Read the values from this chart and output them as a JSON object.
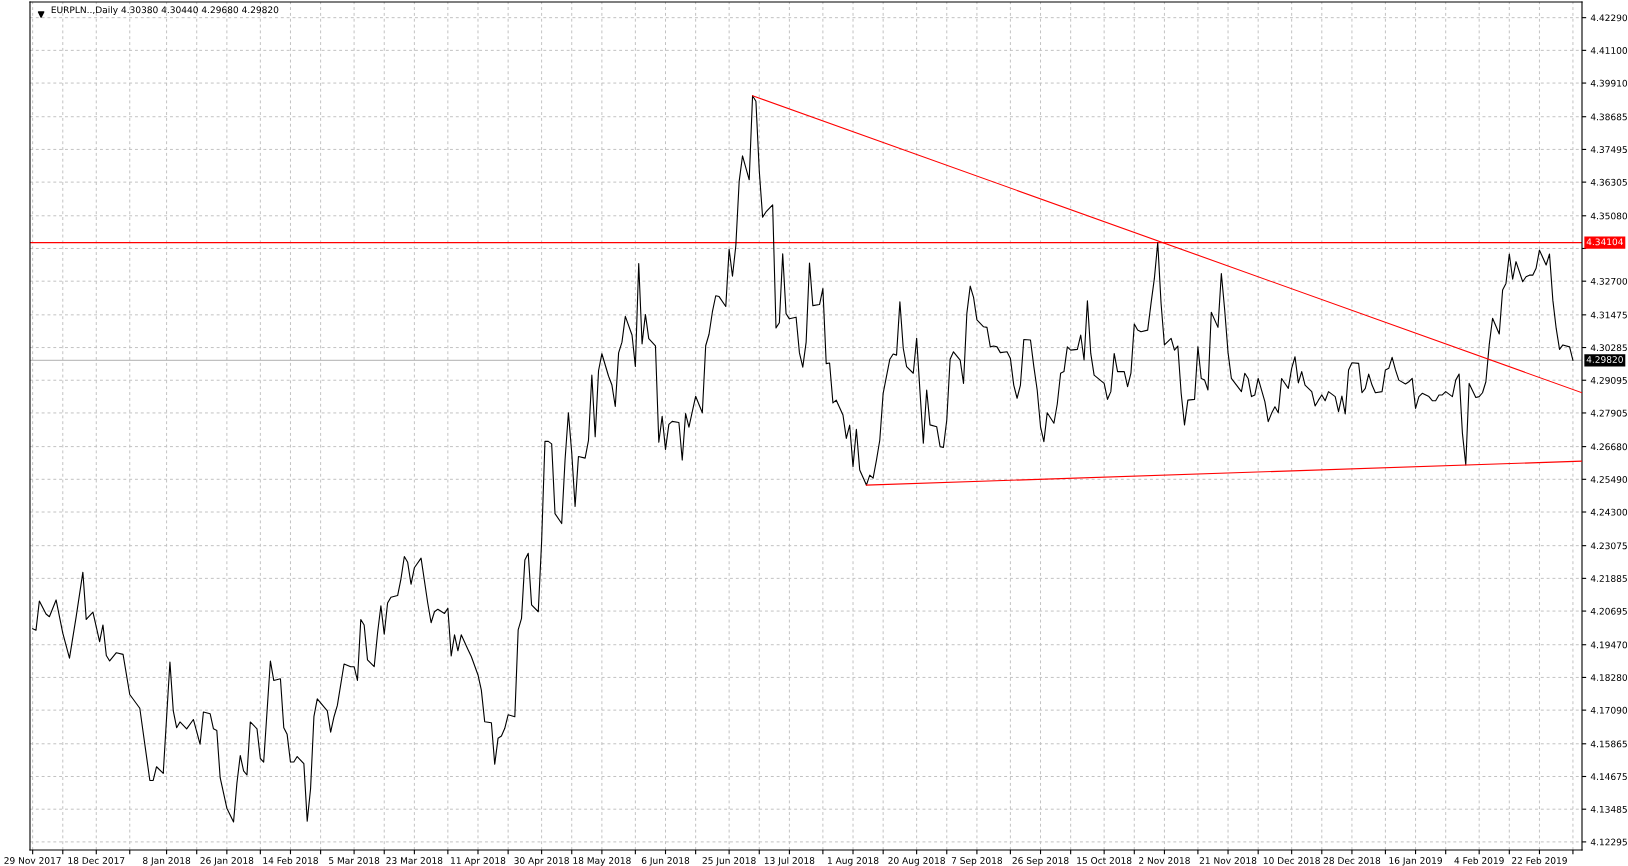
{
  "chart_data": {
    "type": "line",
    "title": "EURPLN..,Daily 4.30380 4.30440 4.29680 4.29820",
    "series": [
      {
        "color": "#000000",
        "x": [
          "2017-11-29",
          "2017-11-30",
          "2017-12-01",
          "2017-12-03",
          "2017-12-04",
          "2017-12-06",
          "2017-12-08",
          "2017-12-10",
          "2017-12-12",
          "2017-12-14",
          "2017-12-15",
          "2017-12-17",
          "2017-12-19",
          "2017-12-20",
          "2017-12-21",
          "2017-12-22",
          "2017-12-24",
          "2017-12-26",
          "2017-12-28",
          "2017-12-31",
          "2018-01-03",
          "2018-01-04",
          "2018-01-05",
          "2018-01-07",
          "2018-01-09",
          "2018-01-10",
          "2018-01-11",
          "2018-01-12",
          "2018-01-14",
          "2018-01-16",
          "2018-01-18",
          "2018-01-19",
          "2018-01-21",
          "2018-01-22",
          "2018-01-23",
          "2018-01-24",
          "2018-01-26",
          "2018-01-28",
          "2018-01-29",
          "2018-01-30",
          "2018-01-31",
          "2018-02-01",
          "2018-02-02",
          "2018-02-04",
          "2018-02-05",
          "2018-02-06",
          "2018-02-08",
          "2018-02-09",
          "2018-02-11",
          "2018-02-12",
          "2018-02-13",
          "2018-02-14",
          "2018-02-15",
          "2018-02-16",
          "2018-02-18",
          "2018-02-19",
          "2018-02-20",
          "2018-02-21",
          "2018-02-22",
          "2018-02-25",
          "2018-02-26",
          "2018-02-27",
          "2018-02-28",
          "2018-03-02",
          "2018-03-04",
          "2018-03-05",
          "2018-03-06",
          "2018-03-07",
          "2018-03-08",
          "2018-03-09",
          "2018-03-11",
          "2018-03-12",
          "2018-03-13",
          "2018-03-14",
          "2018-03-15",
          "2018-03-16",
          "2018-03-18",
          "2018-03-19",
          "2018-03-20",
          "2018-03-21",
          "2018-03-22",
          "2018-03-23",
          "2018-03-25",
          "2018-03-27",
          "2018-03-28",
          "2018-03-29",
          "2018-03-30",
          "2018-04-01",
          "2018-04-02",
          "2018-04-03",
          "2018-04-04",
          "2018-04-05",
          "2018-04-06",
          "2018-04-08",
          "2018-04-09",
          "2018-04-11",
          "2018-04-12",
          "2018-04-13",
          "2018-04-15",
          "2018-04-16",
          "2018-04-17",
          "2018-04-18",
          "2018-04-19",
          "2018-04-20",
          "2018-04-22",
          "2018-04-23",
          "2018-04-24",
          "2018-04-25",
          "2018-04-26",
          "2018-04-27",
          "2018-04-29",
          "2018-04-30",
          "2018-05-01",
          "2018-05-02",
          "2018-05-03",
          "2018-05-04",
          "2018-05-06",
          "2018-05-07",
          "2018-05-08",
          "2018-05-09",
          "2018-05-10",
          "2018-05-11",
          "2018-05-13",
          "2018-05-14",
          "2018-05-15",
          "2018-05-16",
          "2018-05-17",
          "2018-05-18",
          "2018-05-20",
          "2018-05-21",
          "2018-05-22",
          "2018-05-23",
          "2018-05-24",
          "2018-05-25",
          "2018-05-27",
          "2018-05-28",
          "2018-05-29",
          "2018-05-30",
          "2018-05-31",
          "2018-06-01",
          "2018-06-03",
          "2018-06-04",
          "2018-06-05",
          "2018-06-06",
          "2018-06-07",
          "2018-06-08",
          "2018-06-10",
          "2018-06-11",
          "2018-06-12",
          "2018-06-13",
          "2018-06-14",
          "2018-06-15",
          "2018-06-17",
          "2018-06-18",
          "2018-06-19",
          "2018-06-20",
          "2018-06-21",
          "2018-06-22",
          "2018-06-24",
          "2018-06-25",
          "2018-06-26",
          "2018-06-27",
          "2018-06-28",
          "2018-06-29",
          "2018-07-01",
          "2018-07-02",
          "2018-07-03",
          "2018-07-04",
          "2018-07-05",
          "2018-07-06",
          "2018-07-08",
          "2018-07-09",
          "2018-07-10",
          "2018-07-11",
          "2018-07-12",
          "2018-07-13",
          "2018-07-15",
          "2018-07-16",
          "2018-07-17",
          "2018-07-18",
          "2018-07-19",
          "2018-07-20",
          "2018-07-22",
          "2018-07-23",
          "2018-07-24",
          "2018-07-25",
          "2018-07-26",
          "2018-07-27",
          "2018-07-29",
          "2018-07-30",
          "2018-07-31",
          "2018-08-01",
          "2018-08-02",
          "2018-08-03",
          "2018-08-05",
          "2018-08-06",
          "2018-08-07",
          "2018-08-08",
          "2018-08-09",
          "2018-08-10",
          "2018-08-12",
          "2018-08-13",
          "2018-08-14",
          "2018-08-15",
          "2018-08-16",
          "2018-08-17",
          "2018-08-19",
          "2018-08-20",
          "2018-08-21",
          "2018-08-22",
          "2018-08-23",
          "2018-08-24",
          "2018-08-26",
          "2018-08-27",
          "2018-08-28",
          "2018-08-29",
          "2018-08-30",
          "2018-08-31",
          "2018-09-02",
          "2018-09-03",
          "2018-09-04",
          "2018-09-05",
          "2018-09-06",
          "2018-09-07",
          "2018-09-09",
          "2018-09-10",
          "2018-09-11",
          "2018-09-12",
          "2018-09-13",
          "2018-09-14",
          "2018-09-16",
          "2018-09-17",
          "2018-09-18",
          "2018-09-19",
          "2018-09-20",
          "2018-09-21",
          "2018-09-23",
          "2018-09-24",
          "2018-09-25",
          "2018-09-26",
          "2018-09-27",
          "2018-09-28",
          "2018-09-30",
          "2018-10-01",
          "2018-10-02",
          "2018-10-03",
          "2018-10-04",
          "2018-10-05",
          "2018-10-07",
          "2018-10-08",
          "2018-10-09",
          "2018-10-10",
          "2018-10-11",
          "2018-10-12",
          "2018-10-14",
          "2018-10-15",
          "2018-10-16",
          "2018-10-17",
          "2018-10-18",
          "2018-10-19",
          "2018-10-21",
          "2018-10-22",
          "2018-10-23",
          "2018-10-24",
          "2018-10-25",
          "2018-10-26",
          "2018-10-28",
          "2018-10-29",
          "2018-10-30",
          "2018-10-31",
          "2018-11-01",
          "2018-11-02",
          "2018-11-04",
          "2018-11-05",
          "2018-11-06",
          "2018-11-07",
          "2018-11-08",
          "2018-11-09",
          "2018-11-11",
          "2018-11-12",
          "2018-11-13",
          "2018-11-14",
          "2018-11-15",
          "2018-11-16",
          "2018-11-18",
          "2018-11-19",
          "2018-11-20",
          "2018-11-21",
          "2018-11-22",
          "2018-11-25",
          "2018-11-26",
          "2018-11-27",
          "2018-11-28",
          "2018-11-29",
          "2018-11-30",
          "2018-12-02",
          "2018-12-03",
          "2018-12-04",
          "2018-12-05",
          "2018-12-06",
          "2018-12-07",
          "2018-12-09",
          "2018-12-10",
          "2018-12-11",
          "2018-12-12",
          "2018-12-13",
          "2018-12-14",
          "2018-12-16",
          "2018-12-17",
          "2018-12-18",
          "2018-12-19",
          "2018-12-20",
          "2018-12-21",
          "2018-12-23",
          "2018-12-24",
          "2018-12-25",
          "2018-12-26",
          "2018-12-27",
          "2018-12-28",
          "2018-12-30",
          "2018-12-31",
          "2019-01-01",
          "2019-01-02",
          "2019-01-03",
          "2019-01-04",
          "2019-01-06",
          "2019-01-07",
          "2019-01-08",
          "2019-01-09",
          "2019-01-10",
          "2019-01-11",
          "2019-01-13",
          "2019-01-14",
          "2019-01-15",
          "2019-01-16",
          "2019-01-17",
          "2019-01-18",
          "2019-01-20",
          "2019-01-21",
          "2019-01-22",
          "2019-01-23",
          "2019-01-24",
          "2019-01-25",
          "2019-01-27",
          "2019-01-28",
          "2019-01-29",
          "2019-01-30",
          "2019-01-31",
          "2019-02-01",
          "2019-02-03",
          "2019-02-04",
          "2019-02-05",
          "2019-02-06",
          "2019-02-07",
          "2019-02-08",
          "2019-02-10",
          "2019-02-11",
          "2019-02-12",
          "2019-02-13",
          "2019-02-14",
          "2019-02-15",
          "2019-02-17",
          "2019-02-18",
          "2019-02-19",
          "2019-02-20",
          "2019-02-21",
          "2019-02-22",
          "2019-02-24",
          "2019-02-25",
          "2019-02-26",
          "2019-02-27",
          "2019-02-28",
          "2019-03-01",
          "2019-03-03",
          "2019-03-04"
        ],
        "values": [
          4.2005,
          4.2,
          4.2106,
          4.2059,
          4.2049,
          4.211,
          4.1989,
          4.1898,
          4.2049,
          4.2211,
          4.2039,
          4.2066,
          4.1958,
          4.2019,
          4.1908,
          4.1888,
          4.1918,
          4.1912,
          4.1766,
          4.1716,
          4.1453,
          4.1453,
          4.1503,
          4.1479,
          4.1884,
          4.1706,
          4.1645,
          4.1666,
          4.1641,
          4.1675,
          4.1585,
          4.1702,
          4.1696,
          4.1641,
          4.1635,
          4.1463,
          4.1352,
          4.1302,
          4.1443,
          4.1544,
          4.1488,
          4.1473,
          4.1666,
          4.1641,
          4.1533,
          4.152,
          4.1888,
          4.1817,
          4.1823,
          4.1645,
          4.1621,
          4.152,
          4.152,
          4.154,
          4.1514,
          4.1305,
          4.1423,
          4.1685,
          4.175,
          4.1706,
          4.1629,
          4.1685,
          4.1726,
          4.1877,
          4.1867,
          4.1867,
          4.1817,
          4.2039,
          4.2019,
          4.1892,
          4.1867,
          4.1989,
          4.2089,
          4.1985,
          4.2099,
          4.212,
          4.2126,
          4.2187,
          4.2268,
          4.2247,
          4.2167,
          4.2227,
          4.2262,
          4.2098,
          4.2027,
          4.2067,
          4.2076,
          4.2061,
          4.208,
          4.1906,
          4.1983,
          4.1925,
          4.1983,
          4.193,
          4.1904,
          4.1837,
          4.1782,
          4.1667,
          4.1663,
          4.1512,
          4.1607,
          4.1615,
          4.1643,
          4.1692,
          4.1685,
          4.2001,
          4.2043,
          4.2255,
          4.228,
          4.2092,
          4.2067,
          4.2322,
          4.2687,
          4.2687,
          4.2678,
          4.2424,
          4.2388,
          4.2619,
          4.2791,
          4.2645,
          4.245,
          4.2632,
          4.2626,
          4.2691,
          4.2928,
          4.2704,
          4.2944,
          4.3006,
          4.2924,
          4.2892,
          4.2814,
          4.3009,
          4.3048,
          4.3142,
          4.3074,
          4.296,
          4.3334,
          4.3042,
          4.3149,
          4.3061,
          4.3035,
          4.2684,
          4.2778,
          4.2658,
          4.2749,
          4.276,
          4.2756,
          4.2619,
          4.2788,
          4.2739,
          4.2795,
          4.2851,
          4.2791,
          4.3035,
          4.3077,
          4.3158,
          4.3217,
          4.3214,
          4.3178,
          4.3386,
          4.3288,
          4.3399,
          4.3633,
          4.3726,
          4.3639,
          4.3945,
          4.3925,
          4.3672,
          4.3503,
          4.3522,
          4.3548,
          4.31,
          4.3119,
          4.337,
          4.3152,
          4.3133,
          4.3139,
          4.3009,
          4.2957,
          4.3048,
          4.3336,
          4.3181,
          4.3185,
          4.3243,
          4.297,
          4.2972,
          4.2827,
          4.2837,
          4.2783,
          4.2698,
          4.2746,
          4.2595,
          4.2731,
          4.2583,
          4.2528,
          4.2564,
          4.2553,
          4.2619,
          4.2692,
          4.2862,
          4.2986,
          4.3005,
          4.3001,
          4.3195,
          4.3026,
          4.2959,
          4.2935,
          4.3062,
          4.2868,
          4.268,
          4.2874,
          4.2747,
          4.274,
          4.2668,
          4.2665,
          4.2765,
          4.2986,
          4.3013,
          4.2983,
          4.2898,
          4.3153,
          4.3252,
          4.3211,
          4.3129,
          4.3104,
          4.3102,
          4.3031,
          4.3034,
          4.3031,
          4.301,
          4.3013,
          4.2989,
          4.2892,
          4.2844,
          4.2892,
          4.3058,
          4.3056,
          4.2959,
          4.2874,
          4.274,
          4.2686,
          4.2791,
          4.2753,
          4.2823,
          4.2935,
          4.2941,
          4.3031,
          4.3019,
          4.3022,
          4.3074,
          4.2983,
          4.3199,
          4.3007,
          4.2928,
          4.2908,
          4.2898,
          4.284,
          4.2868,
          4.3007,
          4.2941,
          4.2941,
          4.2886,
          4.2935,
          4.3114,
          4.3092,
          4.3086,
          4.3092,
          4.3189,
          4.328,
          4.341,
          4.3189,
          4.3038,
          4.3062,
          4.3019,
          4.3034,
          4.2862,
          4.2747,
          4.2837,
          4.284,
          4.3031,
          4.2916,
          4.291,
          4.2874,
          4.3157,
          4.3102,
          4.3298,
          4.3165,
          4.301,
          4.2916,
          4.2868,
          4.2935,
          4.2916,
          4.285,
          4.2856,
          4.2916,
          4.2832,
          4.2759,
          4.2789,
          4.2813,
          4.2791,
          4.2916,
          4.288,
          4.2953,
          4.2995,
          4.29,
          4.2941,
          4.2892,
          4.2868,
          4.2816,
          4.2837,
          4.2856,
          4.2835,
          4.2868,
          4.285,
          4.2795,
          4.2852,
          4.2787,
          4.2947,
          4.2973,
          4.2971,
          4.2864,
          4.288,
          4.2932,
          4.2892,
          4.2864,
          4.2868,
          4.2947,
          4.2953,
          4.2993,
          4.2947,
          4.291,
          4.2896,
          4.2904,
          4.2916,
          4.2807,
          4.285,
          4.2862,
          4.285,
          4.2835,
          4.2835,
          4.2856,
          4.2856,
          4.2868,
          4.285,
          4.291,
          4.2932,
          4.2716,
          4.2601,
          4.2898,
          4.2847,
          4.285,
          4.2864,
          4.2904,
          4.3038,
          4.3135,
          4.3078,
          4.3238,
          4.3262,
          4.3369,
          4.3277,
          4.3341,
          4.3268,
          4.3286,
          4.3292,
          4.3292,
          4.3317,
          4.3383,
          4.3329,
          4.3369,
          4.3201,
          4.3098,
          4.3022,
          4.3038,
          4.3031,
          4.2982
        ]
      },
      {
        "type": "line",
        "color": "#ff0000",
        "x": [
          "2018-07-02",
          "2019-03-06T17:00"
        ],
        "values": [
          4.3945,
          4.2864
        ]
      },
      {
        "type": "line",
        "color": "#ff0000",
        "x": [
          "2018-08-05",
          "2019-03-06T17:00"
        ],
        "values": [
          4.2528,
          4.2615
        ]
      }
    ],
    "xlim": [
      "2017-11-28T05:00",
      "2019-03-06T17:00"
    ],
    "xticks": [
      {
        "value": "2017-11-29",
        "label": "29 Nov 2017"
      },
      {
        "value": "2017-12-08",
        "label": null
      },
      {
        "value": "2017-12-18",
        "label": "18 Dec 2017"
      },
      {
        "value": "2017-12-28",
        "label": null
      },
      {
        "value": "2018-01-08",
        "label": "8 Jan 2018"
      },
      {
        "value": "2018-01-17",
        "label": null
      },
      {
        "value": "2018-01-26",
        "label": "26 Jan 2018"
      },
      {
        "value": "2018-02-05",
        "label": null
      },
      {
        "value": "2018-02-14",
        "label": "14 Feb 2018"
      },
      {
        "value": "2018-02-23",
        "label": null
      },
      {
        "value": "2018-03-05",
        "label": "5 Mar 2018"
      },
      {
        "value": "2018-03-14",
        "label": null
      },
      {
        "value": "2018-03-23",
        "label": "23 Mar 2018"
      },
      {
        "value": "2018-04-02",
        "label": null
      },
      {
        "value": "2018-04-11",
        "label": "11 Apr 2018"
      },
      {
        "value": "2018-04-20",
        "label": null
      },
      {
        "value": "2018-04-30",
        "label": "30 Apr 2018"
      },
      {
        "value": "2018-05-09",
        "label": null
      },
      {
        "value": "2018-05-18",
        "label": "18 May 2018"
      },
      {
        "value": "2018-05-28",
        "label": null
      },
      {
        "value": "2018-06-06",
        "label": "6 Jun 2018"
      },
      {
        "value": "2018-06-15",
        "label": null
      },
      {
        "value": "2018-06-25",
        "label": "25 Jun 2018"
      },
      {
        "value": "2018-07-04",
        "label": null
      },
      {
        "value": "2018-07-13",
        "label": "13 Jul 2018"
      },
      {
        "value": "2018-07-23",
        "label": null
      },
      {
        "value": "2018-08-01",
        "label": "1 Aug 2018"
      },
      {
        "value": "2018-08-10",
        "label": null
      },
      {
        "value": "2018-08-20",
        "label": "20 Aug 2018"
      },
      {
        "value": "2018-08-29",
        "label": null
      },
      {
        "value": "2018-09-07",
        "label": "7 Sep 2018"
      },
      {
        "value": "2018-09-17",
        "label": null
      },
      {
        "value": "2018-09-26",
        "label": "26 Sep 2018"
      },
      {
        "value": "2018-10-05",
        "label": null
      },
      {
        "value": "2018-10-15",
        "label": "15 Oct 2018"
      },
      {
        "value": "2018-10-24",
        "label": null
      },
      {
        "value": "2018-11-02",
        "label": "2 Nov 2018"
      },
      {
        "value": "2018-11-12",
        "label": null
      },
      {
        "value": "2018-11-21",
        "label": "21 Nov 2018"
      },
      {
        "value": "2018-11-30",
        "label": null
      },
      {
        "value": "2018-12-10",
        "label": "10 Dec 2018"
      },
      {
        "value": "2018-12-19",
        "label": null
      },
      {
        "value": "2018-12-28",
        "label": "28 Dec 2018"
      },
      {
        "value": "2019-01-07",
        "label": null
      },
      {
        "value": "2019-01-16",
        "label": "16 Jan 2019"
      },
      {
        "value": "2019-01-25",
        "label": null
      },
      {
        "value": "2019-02-04",
        "label": "4 Feb 2019"
      },
      {
        "value": "2019-02-13",
        "label": null
      },
      {
        "value": "2019-02-22",
        "label": "22 Feb 2019"
      },
      {
        "value": "2019-03-04",
        "label": null
      }
    ],
    "ylim": [
      4.12,
      4.4286
    ],
    "yticks": [
      {
        "value": 4.4229,
        "label": "4.42290"
      },
      {
        "value": 4.411,
        "label": "4.41100"
      },
      {
        "value": 4.3991,
        "label": "4.39910"
      },
      {
        "value": 4.38685,
        "label": "4.38685"
      },
      {
        "value": 4.37495,
        "label": "4.37495"
      },
      {
        "value": 4.36305,
        "label": "4.36305"
      },
      {
        "value": 4.3508,
        "label": "4.35080"
      },
      {
        "value": 4.3389,
        "label": null
      },
      {
        "value": 4.327,
        "label": "4.32700"
      },
      {
        "value": 4.31475,
        "label": "4.31475"
      },
      {
        "value": 4.30285,
        "label": "4.30285"
      },
      {
        "value": 4.29095,
        "label": "4.29095"
      },
      {
        "value": 4.27905,
        "label": "4.27905"
      },
      {
        "value": 4.2668,
        "label": "4.26680"
      },
      {
        "value": 4.2549,
        "label": "4.25490"
      },
      {
        "value": 4.243,
        "label": "4.24300"
      },
      {
        "value": 4.23075,
        "label": "4.23075"
      },
      {
        "value": 4.21885,
        "label": "4.21885"
      },
      {
        "value": 4.20695,
        "label": "4.20695"
      },
      {
        "value": 4.1947,
        "label": "4.19470"
      },
      {
        "value": 4.1828,
        "label": "4.18280"
      },
      {
        "value": 4.1709,
        "label": "4.17090"
      },
      {
        "value": 4.15865,
        "label": "4.15865"
      },
      {
        "value": 4.14675,
        "label": "4.14675"
      },
      {
        "value": 4.13485,
        "label": "4.13485"
      },
      {
        "value": 4.12295,
        "label": "4.12295"
      }
    ],
    "ref_lines": [
      {
        "axis": "y",
        "value": 4.34104,
        "label": "4.34104",
        "color": "#ff0000"
      },
      {
        "axis": "y",
        "value": 4.2982,
        "label": "4.29820",
        "color": "#c0c0c0"
      }
    ],
    "grid": true,
    "marker": "none",
    "line_style": "solid"
  }
}
